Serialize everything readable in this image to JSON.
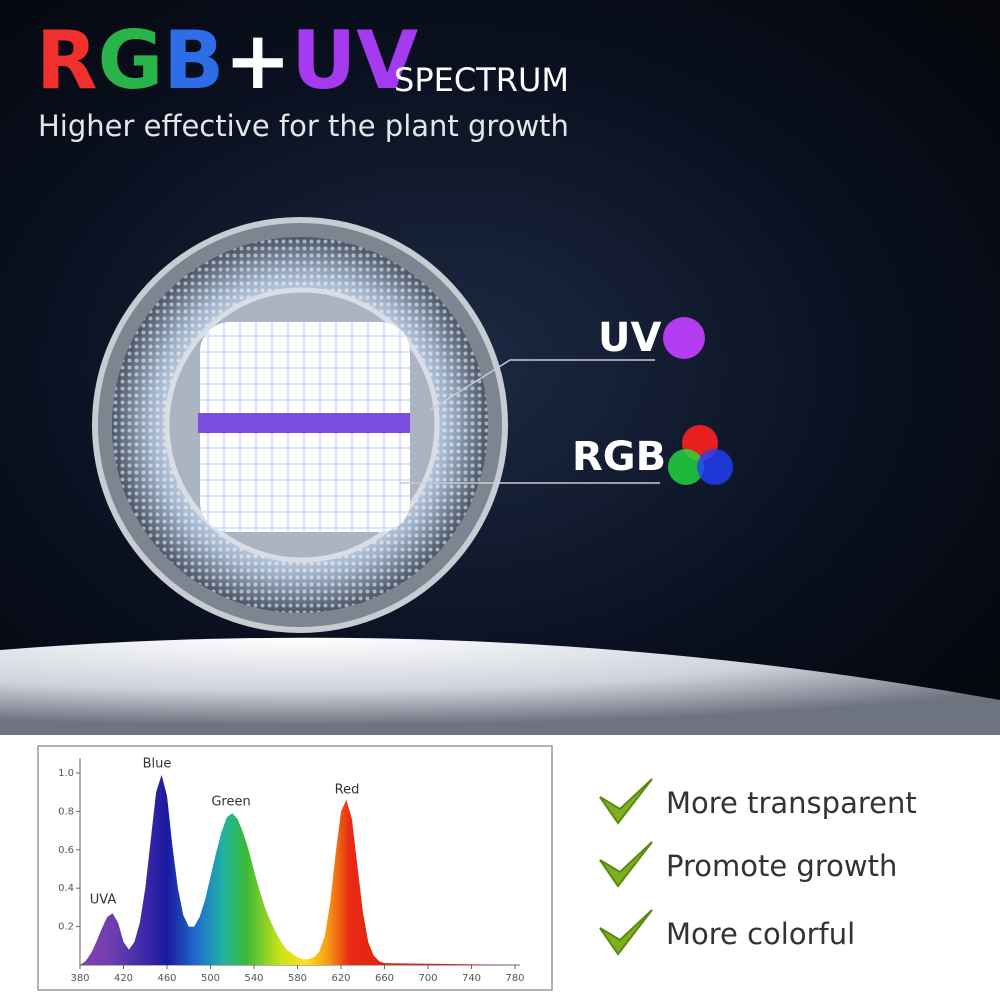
{
  "header": {
    "title": [
      "R",
      "G",
      "B",
      "+",
      "UV"
    ],
    "title_suffix": "SPECTRUM",
    "subtitle": "Higher effective for the plant growth"
  },
  "callouts": [
    "UV",
    "RGB"
  ],
  "features": [
    "More transparent",
    "Promote growth",
    "More colorful"
  ],
  "chart_data": {
    "type": "area",
    "annotations": [
      "UVA",
      "Blue",
      "Green",
      "Red"
    ],
    "x": [
      380,
      385,
      390,
      395,
      400,
      405,
      410,
      415,
      420,
      425,
      430,
      435,
      440,
      445,
      450,
      455,
      460,
      465,
      470,
      475,
      480,
      485,
      490,
      495,
      500,
      505,
      510,
      515,
      520,
      525,
      530,
      535,
      540,
      545,
      550,
      555,
      560,
      565,
      570,
      575,
      580,
      585,
      590,
      595,
      600,
      605,
      610,
      615,
      620,
      625,
      630,
      635,
      640,
      645,
      650,
      655,
      660,
      780
    ],
    "values": [
      0.0,
      0.02,
      0.06,
      0.12,
      0.19,
      0.25,
      0.27,
      0.22,
      0.12,
      0.08,
      0.12,
      0.22,
      0.4,
      0.65,
      0.9,
      0.99,
      0.88,
      0.62,
      0.4,
      0.26,
      0.2,
      0.2,
      0.25,
      0.34,
      0.46,
      0.58,
      0.69,
      0.77,
      0.79,
      0.76,
      0.69,
      0.6,
      0.49,
      0.39,
      0.3,
      0.23,
      0.17,
      0.12,
      0.08,
      0.06,
      0.04,
      0.03,
      0.03,
      0.04,
      0.07,
      0.15,
      0.32,
      0.58,
      0.8,
      0.86,
      0.76,
      0.52,
      0.28,
      0.12,
      0.05,
      0.02,
      0.01,
      0.0
    ],
    "xlim": [
      380,
      780
    ],
    "xticks": [
      380,
      420,
      460,
      500,
      540,
      580,
      620,
      660,
      700,
      740,
      780
    ],
    "ylim": [
      0,
      1.05
    ],
    "yticks": [
      0.2,
      0.4,
      0.6,
      0.8,
      {
        "value": 1,
        "label": "1.0"
      }
    ]
  }
}
